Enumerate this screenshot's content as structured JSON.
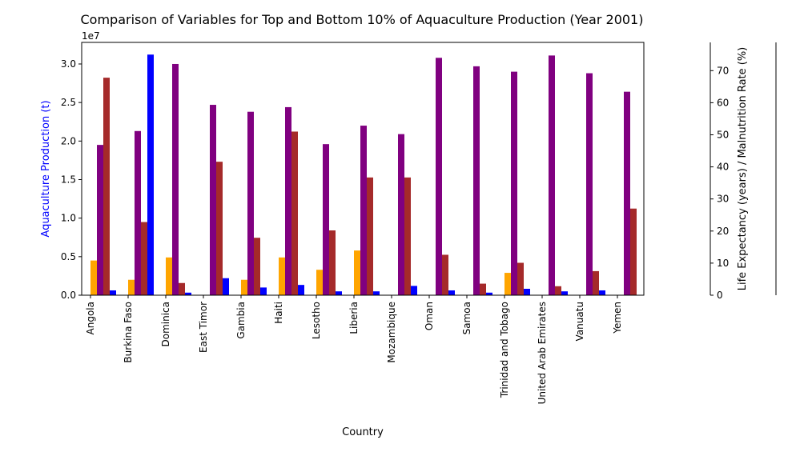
{
  "chart_data": {
    "type": "bar",
    "title": "Comparison of Variables for Top and Bottom 10% of Aquaculture Production (Year 2001)",
    "xlabel": "Country",
    "ylabel_left": "Aquaculture Production (t)",
    "ylabel_right": "Life Expectancy (years) / Malnutrition Rate (%)",
    "left_axis_multiplier": "1e7",
    "ylim_left": [
      0,
      32800000
    ],
    "ylim_right": [
      0,
      78.8
    ],
    "yticks_left": [
      0,
      5000000,
      10000000,
      15000000,
      20000000,
      25000000,
      30000000
    ],
    "yticks_left_labels": [
      "0.0",
      "0.5",
      "1.0",
      "1.5",
      "2.0",
      "2.5",
      "3.0"
    ],
    "yticks_right": [
      0,
      10,
      20,
      30,
      40,
      50,
      60,
      70
    ],
    "yticks_right_labels": [
      "0",
      "10",
      "20",
      "30",
      "40",
      "50",
      "60",
      "70"
    ],
    "categories": [
      "Angola",
      "Burkina Faso",
      "Dominica",
      "East Timor",
      "Gambia",
      "Haiti",
      "Lesotho",
      "Liberia",
      "Mozambique",
      "Oman",
      "Samoa",
      "Trinidad and Tobago",
      "United Arab Emirates",
      "Vanuatu",
      "Yemen"
    ],
    "series": [
      {
        "color": "#ffa500",
        "axis": "left",
        "values": [
          4500000,
          2000000,
          4900000,
          0,
          2000000,
          4900000,
          3300000,
          5800000,
          0,
          0,
          0,
          2900000,
          0,
          0,
          0
        ]
      },
      {
        "color": "#800080",
        "axis": "left",
        "values": [
          19500000,
          21300000,
          30000000,
          24700000,
          23800000,
          24400000,
          19600000,
          22000000,
          20900000,
          30800000,
          29700000,
          29000000,
          31100000,
          28800000,
          26400000
        ]
      },
      {
        "color": "#a52a2a",
        "axis": "right",
        "values": [
          67.8,
          22.8,
          3.8,
          41.6,
          17.9,
          51.0,
          20.2,
          36.7,
          36.7,
          12.6,
          3.6,
          10.1,
          2.8,
          7.5,
          27.0
        ]
      },
      {
        "color": "#0000ff",
        "axis": "right",
        "values": [
          1.5,
          75.0,
          0.8,
          5.3,
          2.4,
          3.2,
          1.2,
          1.2,
          2.9,
          1.5,
          0.8,
          2.0,
          1.2,
          1.5,
          0.0
        ]
      }
    ],
    "grid": false,
    "legend": "none"
  }
}
